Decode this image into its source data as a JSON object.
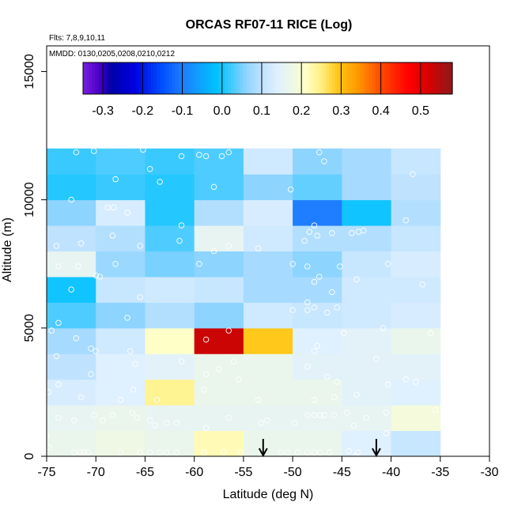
{
  "chart_data": {
    "type": "heatmap",
    "title": "ORCAS RF07-11 RICE (Log)",
    "notes": [
      "Flts: 7,8,9,10,11",
      "MMDD: 0130,0205,0208,0210,0212"
    ],
    "xlabel": "Latitude (deg N)",
    "ylabel": "Altitude (m)",
    "xlim": [
      -75,
      -30
    ],
    "ylim": [
      0,
      16000
    ],
    "xticks": [
      -75,
      -70,
      -65,
      -60,
      -55,
      -50,
      -45,
      -40,
      -35,
      -30
    ],
    "xtick_labels": [
      "-75",
      "-70",
      "-65",
      "-60",
      "-55",
      "-50",
      "-45",
      "-40",
      "-35",
      "-30"
    ],
    "yticks": [
      0,
      5000,
      10000,
      15000
    ],
    "ytick_labels": [
      "0",
      "5000",
      "10000",
      "15000"
    ],
    "lat_bin_edges": [
      -75,
      -70,
      -65,
      -60,
      -55,
      -50,
      -45,
      -40,
      -35
    ],
    "alt_bin_edges": [
      0,
      1000,
      2000,
      3000,
      4000,
      5000,
      6000,
      7000,
      8000,
      9000,
      10000,
      11000,
      12000
    ],
    "colorbar": {
      "range": [
        -0.35,
        0.58
      ],
      "ticks": [
        -0.3,
        -0.2,
        -0.1,
        0.0,
        0.1,
        0.2,
        0.3,
        0.4,
        0.5
      ],
      "tick_labels": [
        "-0.3",
        "-0.2",
        "-0.1",
        "0.0",
        "0.1",
        "0.2",
        "0.3",
        "0.4",
        "0.5"
      ]
    },
    "cells": [
      [
        0.17,
        0.18,
        0.17,
        0.22,
        0.17,
        0.17,
        0.14,
        0.11
      ],
      [
        0.16,
        0.17,
        0.16,
        0.16,
        0.16,
        0.16,
        0.16,
        0.19
      ],
      [
        0.13,
        0.14,
        0.24,
        0.17,
        0.17,
        0.17,
        0.15,
        0.14
      ],
      [
        0.1,
        0.14,
        0.15,
        0.17,
        0.17,
        0.15,
        0.15,
        0.15
      ],
      [
        0.08,
        0.12,
        0.21,
        0.53,
        0.29,
        0.14,
        0.15,
        0.17
      ],
      [
        0.03,
        0.06,
        0.09,
        0.06,
        0.12,
        0.11,
        0.12,
        0.13
      ],
      [
        0.0,
        0.11,
        0.12,
        0.11,
        0.08,
        0.08,
        0.12,
        0.12
      ],
      [
        0.16,
        0.07,
        0.05,
        0.06,
        0.08,
        0.06,
        0.11,
        0.13
      ],
      [
        0.1,
        0.09,
        0.03,
        0.16,
        0.12,
        0.09,
        0.09,
        0.11
      ],
      [
        0.06,
        0.13,
        0.01,
        0.09,
        0.13,
        -0.1,
        0.0,
        0.09
      ],
      [
        0.01,
        0.02,
        0.01,
        0.03,
        0.06,
        0.04,
        0.08,
        0.1
      ],
      [
        0.02,
        0.03,
        0.02,
        0.03,
        0.12,
        0.06,
        0.08,
        0.11
      ]
    ],
    "observations": [
      [
        -72,
        11850
      ],
      [
        -70.2,
        11900
      ],
      [
        -65.2,
        11950
      ],
      [
        -61.3,
        11700
      ],
      [
        -59.5,
        11750
      ],
      [
        -58.8,
        11700
      ],
      [
        -56.5,
        11850
      ],
      [
        -57.2,
        11700
      ],
      [
        -47.3,
        11850
      ],
      [
        -46.8,
        11500
      ],
      [
        -64.5,
        11200
      ],
      [
        -68,
        10800
      ],
      [
        -58,
        10500
      ],
      [
        -72.5,
        10000
      ],
      [
        -63.5,
        10700
      ],
      [
        -50.2,
        10400
      ],
      [
        -37.8,
        11000
      ],
      [
        -68.8,
        9700
      ],
      [
        -68.2,
        9700
      ],
      [
        -66.8,
        9500
      ],
      [
        -61.3,
        9000
      ],
      [
        -47.8,
        9000
      ],
      [
        -48.3,
        8750
      ],
      [
        -47.5,
        8600
      ],
      [
        -46,
        8700
      ],
      [
        -44,
        8700
      ],
      [
        -43.3,
        8750
      ],
      [
        -42.8,
        8800
      ],
      [
        -38.5,
        9200
      ],
      [
        -74,
        8200
      ],
      [
        -71.5,
        8300
      ],
      [
        -68.3,
        8600
      ],
      [
        -65.5,
        8200
      ],
      [
        -61.5,
        8400
      ],
      [
        -56.5,
        8200
      ],
      [
        -58,
        8000
      ],
      [
        -53.5,
        8100
      ],
      [
        -48.8,
        8400
      ],
      [
        -73.8,
        7400
      ],
      [
        -71.8,
        7400
      ],
      [
        -68,
        7500
      ],
      [
        -69.6,
        7000
      ],
      [
        -70,
        7050
      ],
      [
        -65.5,
        6200
      ],
      [
        -59.5,
        7500
      ],
      [
        -50,
        7500
      ],
      [
        -48.5,
        7400
      ],
      [
        -47.3,
        7000
      ],
      [
        -47.8,
        6800
      ],
      [
        -45.2,
        7400
      ],
      [
        -43.5,
        6900
      ],
      [
        -40.3,
        7500
      ],
      [
        -36.8,
        6700
      ],
      [
        -72.5,
        6500
      ],
      [
        -46,
        6400
      ],
      [
        -48.5,
        6000
      ],
      [
        -47.8,
        5800
      ],
      [
        -66.8,
        5400
      ],
      [
        -73.8,
        5200
      ],
      [
        -74.5,
        4900
      ],
      [
        -72,
        4600
      ],
      [
        -70.5,
        4200
      ],
      [
        -70,
        4100
      ],
      [
        -66.5,
        4100
      ],
      [
        -58.8,
        4550
      ],
      [
        -56.5,
        4900
      ],
      [
        -50,
        5700
      ],
      [
        -48.5,
        5700
      ],
      [
        -46.5,
        5600
      ],
      [
        -45.5,
        5800
      ],
      [
        -47.5,
        4300
      ],
      [
        -47.8,
        4100
      ],
      [
        -44.8,
        4800
      ],
      [
        -40.8,
        5000
      ],
      [
        -36,
        4800
      ],
      [
        -74,
        3900
      ],
      [
        -70.5,
        3200
      ],
      [
        -66,
        3600
      ],
      [
        -61.3,
        3700
      ],
      [
        -58.8,
        3200
      ],
      [
        -57.5,
        3400
      ],
      [
        -55.5,
        3000
      ],
      [
        -56,
        3700
      ],
      [
        -48.5,
        3500
      ],
      [
        -46.5,
        3100
      ],
      [
        -45.5,
        2900
      ],
      [
        -41.5,
        3800
      ],
      [
        -38.5,
        3000
      ],
      [
        -37.5,
        2900
      ],
      [
        -74.8,
        2500
      ],
      [
        -73.8,
        2800
      ],
      [
        -71.5,
        2300
      ],
      [
        -67.5,
        2200
      ],
      [
        -66.2,
        2600
      ],
      [
        -63.8,
        2200
      ],
      [
        -59,
        2600
      ],
      [
        -53.5,
        2200
      ],
      [
        -47.8,
        2200
      ],
      [
        -45.8,
        2300
      ],
      [
        -43.5,
        2400
      ],
      [
        -40.3,
        2800
      ],
      [
        -73.8,
        1500
      ],
      [
        -72.2,
        1400
      ],
      [
        -70.2,
        1600
      ],
      [
        -69.3,
        1400
      ],
      [
        -68.3,
        1600
      ],
      [
        -66.3,
        1700
      ],
      [
        -65.8,
        1500
      ],
      [
        -64.5,
        1400
      ],
      [
        -64,
        1200
      ],
      [
        -62.8,
        1300
      ],
      [
        -61.8,
        1300
      ],
      [
        -58.8,
        1100
      ],
      [
        -56.5,
        1500
      ],
      [
        -53.2,
        1300
      ],
      [
        -52.6,
        1400
      ],
      [
        -49.8,
        1300
      ],
      [
        -48.5,
        1600
      ],
      [
        -47.8,
        1600
      ],
      [
        -47.2,
        1600
      ],
      [
        -46.8,
        1600
      ],
      [
        -45.8,
        1600
      ],
      [
        -44.5,
        1700
      ],
      [
        -43.8,
        1200
      ],
      [
        -42.5,
        1500
      ],
      [
        -40.5,
        1700
      ],
      [
        -35.5,
        1800
      ],
      [
        -75,
        800
      ],
      [
        -74.8,
        350
      ],
      [
        -72.2,
        150
      ],
      [
        -71.6,
        150
      ],
      [
        -71.2,
        150
      ],
      [
        -70.8,
        150
      ],
      [
        -67.5,
        150
      ],
      [
        -65.5,
        150
      ],
      [
        -64.5,
        150
      ],
      [
        -63.5,
        150
      ],
      [
        -62.8,
        150
      ],
      [
        -61.8,
        150
      ],
      [
        -59,
        150
      ],
      [
        -57,
        150
      ],
      [
        -55.3,
        150
      ],
      [
        -53.2,
        150
      ],
      [
        -51.2,
        150
      ],
      [
        -50.5,
        150
      ],
      [
        -49.5,
        150
      ],
      [
        -48.5,
        150
      ],
      [
        -47.8,
        150
      ],
      [
        -47.2,
        150
      ],
      [
        -46.3,
        150
      ],
      [
        -44.3,
        200
      ],
      [
        -43.6,
        0
      ],
      [
        -43.4,
        150
      ],
      [
        -40.5,
        900
      ]
    ],
    "arrows_lat": [
      -53,
      -41.5
    ]
  }
}
